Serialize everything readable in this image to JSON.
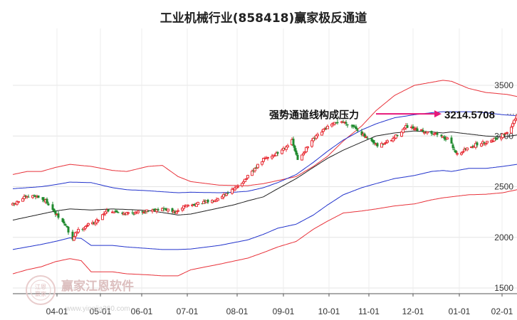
{
  "chart_data": {
    "type": "candlestick",
    "title": "工业机械行业(858418)赢家极反通道",
    "y_ticks": [
      "3500",
      "3000",
      "2500",
      "2000",
      "1500"
    ],
    "y_tick_values": [
      3500,
      3000,
      2500,
      2000,
      1500
    ],
    "ylim": [
      1500,
      3700
    ],
    "x_ticks": [
      "04-01",
      "05-01",
      "06-01",
      "07-01",
      "08-01",
      "09-01",
      "10-01",
      "11-01",
      "12-01",
      "01-01",
      "02-01"
    ],
    "annotation": {
      "text": "强势通道线构成压力",
      "value": "3214.5708",
      "price": 3214.5708
    },
    "watermark": {
      "name": "赢家江恩软件",
      "url": "www.yingjia360.com"
    },
    "colors": {
      "up": "#e8323a",
      "down": "#1f8a2e",
      "outer_band": "#e8323a",
      "inner_band": "#2233cc",
      "middle": "#222222",
      "annotation": "#e6187a"
    },
    "series": {
      "upper_outer": [
        [
          0,
          2620
        ],
        [
          10,
          2650
        ],
        [
          20,
          2650
        ],
        [
          30,
          2690
        ],
        [
          40,
          2720
        ],
        [
          55,
          2700
        ],
        [
          70,
          2660
        ],
        [
          80,
          2650
        ],
        [
          95,
          2700
        ],
        [
          105,
          2710
        ],
        [
          116,
          2600
        ],
        [
          125,
          2550
        ],
        [
          145,
          2515
        ],
        [
          165,
          2510
        ],
        [
          176,
          2530
        ],
        [
          186,
          2560
        ],
        [
          199,
          2600
        ],
        [
          211,
          2700
        ],
        [
          221,
          2800
        ],
        [
          232,
          2950
        ],
        [
          245,
          3100
        ],
        [
          255,
          3250
        ],
        [
          268,
          3400
        ],
        [
          282,
          3500
        ],
        [
          294,
          3530
        ],
        [
          302,
          3550
        ],
        [
          308,
          3540
        ],
        [
          320,
          3470
        ],
        [
          332,
          3430
        ],
        [
          347,
          3410
        ],
        [
          354,
          3390
        ]
      ],
      "upper_inner": [
        [
          0,
          2480
        ],
        [
          10,
          2490
        ],
        [
          20,
          2500
        ],
        [
          30,
          2520
        ],
        [
          40,
          2545
        ],
        [
          55,
          2540
        ],
        [
          70,
          2490
        ],
        [
          80,
          2470
        ],
        [
          95,
          2460
        ],
        [
          105,
          2450
        ],
        [
          116,
          2440
        ],
        [
          125,
          2445
        ],
        [
          145,
          2440
        ],
        [
          155,
          2445
        ],
        [
          165,
          2455
        ],
        [
          176,
          2490
        ],
        [
          186,
          2540
        ],
        [
          199,
          2620
        ],
        [
          211,
          2740
        ],
        [
          221,
          2850
        ],
        [
          232,
          2960
        ],
        [
          245,
          3060
        ],
        [
          255,
          3120
        ],
        [
          268,
          3180
        ],
        [
          282,
          3210
        ],
        [
          294,
          3230
        ],
        [
          302,
          3240
        ],
        [
          308,
          3240
        ],
        [
          320,
          3240
        ],
        [
          332,
          3230
        ],
        [
          344,
          3210
        ],
        [
          354,
          3200
        ]
      ],
      "middle": [
        [
          0,
          2170
        ],
        [
          10,
          2200
        ],
        [
          20,
          2230
        ],
        [
          30,
          2260
        ],
        [
          40,
          2280
        ],
        [
          55,
          2270
        ],
        [
          70,
          2280
        ],
        [
          80,
          2275
        ],
        [
          95,
          2265
        ],
        [
          105,
          2245
        ],
        [
          116,
          2220
        ],
        [
          125,
          2230
        ],
        [
          135,
          2260
        ],
        [
          145,
          2290
        ],
        [
          155,
          2320
        ],
        [
          165,
          2360
        ],
        [
          176,
          2400
        ],
        [
          186,
          2480
        ],
        [
          199,
          2580
        ],
        [
          211,
          2690
        ],
        [
          221,
          2780
        ],
        [
          232,
          2860
        ],
        [
          245,
          2940
        ],
        [
          255,
          3000
        ],
        [
          268,
          3030
        ],
        [
          282,
          3050
        ],
        [
          294,
          3040
        ],
        [
          302,
          3030
        ],
        [
          308,
          3040
        ],
        [
          320,
          3020
        ],
        [
          332,
          3000
        ],
        [
          344,
          2990
        ],
        [
          354,
          3010
        ]
      ],
      "lower_inner": [
        [
          0,
          1880
        ],
        [
          10,
          1905
        ],
        [
          20,
          1930
        ],
        [
          30,
          1960
        ],
        [
          40,
          1995
        ],
        [
          48,
          1990
        ],
        [
          55,
          1920
        ],
        [
          70,
          1920
        ],
        [
          80,
          1905
        ],
        [
          95,
          1890
        ],
        [
          105,
          1880
        ],
        [
          116,
          1880
        ],
        [
          125,
          1885
        ],
        [
          145,
          1920
        ],
        [
          165,
          1975
        ],
        [
          176,
          2030
        ],
        [
          186,
          2090
        ],
        [
          199,
          2130
        ],
        [
          211,
          2220
        ],
        [
          221,
          2320
        ],
        [
          232,
          2420
        ],
        [
          245,
          2490
        ],
        [
          255,
          2530
        ],
        [
          268,
          2580
        ],
        [
          282,
          2610
        ],
        [
          294,
          2650
        ],
        [
          302,
          2660
        ],
        [
          308,
          2650
        ],
        [
          320,
          2680
        ],
        [
          332,
          2680
        ],
        [
          344,
          2700
        ],
        [
          354,
          2720
        ]
      ],
      "lower_outer": [
        [
          0,
          1640
        ],
        [
          10,
          1680
        ],
        [
          20,
          1710
        ],
        [
          30,
          1760
        ],
        [
          40,
          1790
        ],
        [
          48,
          1770
        ],
        [
          55,
          1660
        ],
        [
          70,
          1660
        ],
        [
          80,
          1640
        ],
        [
          95,
          1630
        ],
        [
          105,
          1620
        ],
        [
          116,
          1620
        ],
        [
          125,
          1680
        ],
        [
          145,
          1735
        ],
        [
          165,
          1795
        ],
        [
          176,
          1850
        ],
        [
          186,
          1905
        ],
        [
          199,
          1960
        ],
        [
          211,
          2080
        ],
        [
          221,
          2160
        ],
        [
          232,
          2240
        ],
        [
          245,
          2260
        ],
        [
          255,
          2280
        ],
        [
          268,
          2310
        ],
        [
          282,
          2330
        ],
        [
          294,
          2370
        ],
        [
          302,
          2390
        ],
        [
          308,
          2400
        ],
        [
          320,
          2420
        ],
        [
          332,
          2425
        ],
        [
          344,
          2440
        ],
        [
          354,
          2470
        ]
      ],
      "close_anchors": [
        [
          0,
          2320
        ],
        [
          8,
          2390
        ],
        [
          16,
          2410
        ],
        [
          24,
          2350
        ],
        [
          30,
          2230
        ],
        [
          38,
          2100
        ],
        [
          41,
          1930
        ],
        [
          44,
          2050
        ],
        [
          52,
          2120
        ],
        [
          58,
          2150
        ],
        [
          66,
          2270
        ],
        [
          76,
          2240
        ],
        [
          86,
          2240
        ],
        [
          96,
          2270
        ],
        [
          106,
          2280
        ],
        [
          115,
          2240
        ],
        [
          120,
          2310
        ],
        [
          130,
          2330
        ],
        [
          140,
          2360
        ],
        [
          148,
          2420
        ],
        [
          156,
          2480
        ],
        [
          166,
          2610
        ],
        [
          176,
          2770
        ],
        [
          186,
          2830
        ],
        [
          196,
          2950
        ],
        [
          200,
          2760
        ],
        [
          210,
          2950
        ],
        [
          220,
          3080
        ],
        [
          230,
          3150
        ],
        [
          240,
          3090
        ],
        [
          248,
          2980
        ],
        [
          256,
          2900
        ],
        [
          266,
          2960
        ],
        [
          276,
          3090
        ],
        [
          286,
          3050
        ],
        [
          296,
          3030
        ],
        [
          306,
          2960
        ],
        [
          312,
          2820
        ],
        [
          322,
          2900
        ],
        [
          332,
          2940
        ],
        [
          342,
          2990
        ],
        [
          348,
          3050
        ],
        [
          354,
          3190
        ]
      ]
    }
  }
}
